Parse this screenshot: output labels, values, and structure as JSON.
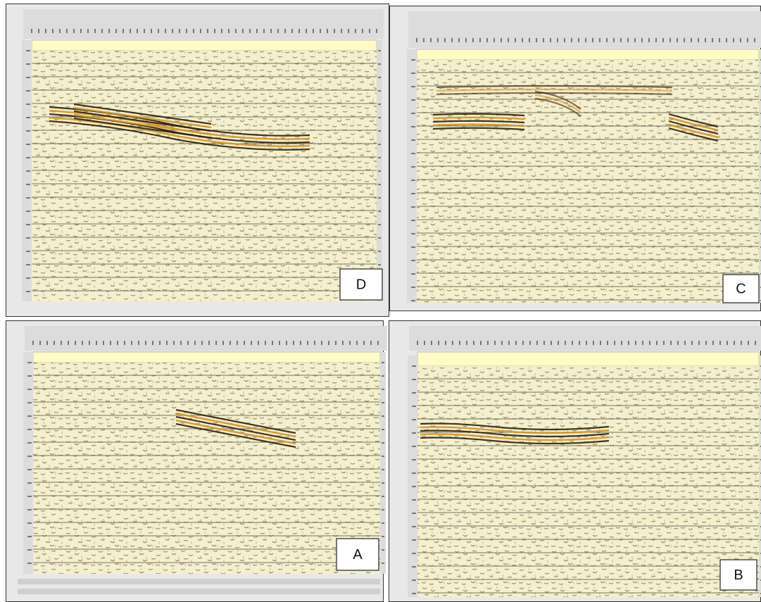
{
  "panels": [
    {
      "label": "D"
    },
    {
      "label": "C"
    },
    {
      "label": "A"
    },
    {
      "label": "B"
    }
  ]
}
